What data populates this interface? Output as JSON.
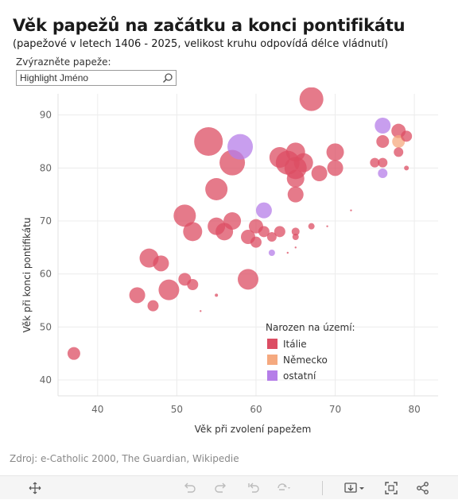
{
  "title": "Věk papežů na začátku a konci pontifikátu",
  "subtitle": "(papežové v letech 1406 - 2025, velikost kruhu odpovídá délce vládnutí)",
  "highlight": {
    "label": "Zvýrazněte papeže:",
    "placeholder": "Highlight Jméno",
    "icon": "search-icon"
  },
  "source": "Zdroj: e-Catholic 2000, The Guardian, Wikipedie",
  "toolbar": {
    "icons": [
      "move-icon",
      "undo-icon",
      "redo-icon",
      "revert-icon",
      "refresh-icon",
      "download-icon",
      "fullscreen-icon",
      "share-icon"
    ]
  },
  "colors": {
    "Itálie": "#dc4d63",
    "Německo": "#f5a97f",
    "ostatní": "#b57ee8",
    "grid": "#ececec",
    "axis": "#666666"
  },
  "chart_data": {
    "type": "scatter",
    "xlabel": "Věk při zvolení papežem",
    "ylabel": "Věk při konci pontifikátu",
    "xlim": [
      35,
      83
    ],
    "ylim": [
      37,
      94
    ],
    "xticks": [
      40,
      50,
      60,
      70,
      80
    ],
    "yticks": [
      40,
      50,
      60,
      70,
      80,
      90
    ],
    "grid": true,
    "legend": {
      "title": "Narozen na území:",
      "entries": [
        "Itálie",
        "Německo",
        "ostatní"
      ],
      "position": "bottom-right"
    },
    "points": [
      {
        "x": 37,
        "y": 45,
        "s": 8,
        "g": "Itálie"
      },
      {
        "x": 45,
        "y": 56,
        "s": 10,
        "g": "Itálie"
      },
      {
        "x": 46.5,
        "y": 63,
        "s": 12,
        "g": "Itálie"
      },
      {
        "x": 47,
        "y": 54,
        "s": 7,
        "g": "Itálie"
      },
      {
        "x": 48,
        "y": 62,
        "s": 10,
        "g": "Itálie"
      },
      {
        "x": 49,
        "y": 57,
        "s": 13,
        "g": "Itálie"
      },
      {
        "x": 51,
        "y": 59,
        "s": 8,
        "g": "Itálie"
      },
      {
        "x": 51,
        "y": 71,
        "s": 14,
        "g": "Itálie"
      },
      {
        "x": 52,
        "y": 68,
        "s": 12,
        "g": "Itálie"
      },
      {
        "x": 52,
        "y": 58,
        "s": 7,
        "g": "Itálie"
      },
      {
        "x": 53,
        "y": 53,
        "s": 1,
        "g": "Itálie"
      },
      {
        "x": 54,
        "y": 85,
        "s": 18,
        "g": "Itálie"
      },
      {
        "x": 55,
        "y": 76,
        "s": 14,
        "g": "Itálie"
      },
      {
        "x": 55,
        "y": 69,
        "s": 11,
        "g": "Itálie"
      },
      {
        "x": 55,
        "y": 56,
        "s": 2,
        "g": "Itálie"
      },
      {
        "x": 56,
        "y": 68,
        "s": 11,
        "g": "Itálie"
      },
      {
        "x": 57,
        "y": 81,
        "s": 16,
        "g": "Itálie"
      },
      {
        "x": 57,
        "y": 70,
        "s": 11,
        "g": "Itálie"
      },
      {
        "x": 58,
        "y": 84,
        "s": 16,
        "g": "ostatní"
      },
      {
        "x": 59,
        "y": 67,
        "s": 9,
        "g": "Itálie"
      },
      {
        "x": 59,
        "y": 59,
        "s": 13,
        "g": "Itálie"
      },
      {
        "x": 60,
        "y": 69,
        "s": 9,
        "g": "Itálie"
      },
      {
        "x": 60,
        "y": 66,
        "s": 7,
        "g": "Itálie"
      },
      {
        "x": 61,
        "y": 72,
        "s": 10,
        "g": "ostatní"
      },
      {
        "x": 61,
        "y": 68,
        "s": 7,
        "g": "Itálie"
      },
      {
        "x": 62,
        "y": 67,
        "s": 6,
        "g": "Itálie"
      },
      {
        "x": 62,
        "y": 64,
        "s": 4,
        "g": "ostatní"
      },
      {
        "x": 63,
        "y": 68,
        "s": 7,
        "g": "Itálie"
      },
      {
        "x": 63,
        "y": 82,
        "s": 13,
        "g": "Itálie"
      },
      {
        "x": 64,
        "y": 81,
        "s": 15,
        "g": "Itálie"
      },
      {
        "x": 64,
        "y": 64,
        "s": 1,
        "g": "Itálie"
      },
      {
        "x": 65,
        "y": 83,
        "s": 12,
        "g": "Itálie"
      },
      {
        "x": 65,
        "y": 80,
        "s": 14,
        "g": "Itálie"
      },
      {
        "x": 65,
        "y": 78,
        "s": 11,
        "g": "Itálie"
      },
      {
        "x": 65,
        "y": 75,
        "s": 10,
        "g": "Itálie"
      },
      {
        "x": 65,
        "y": 68,
        "s": 5,
        "g": "Itálie"
      },
      {
        "x": 65,
        "y": 67,
        "s": 4,
        "g": "Itálie"
      },
      {
        "x": 65,
        "y": 65,
        "s": 1,
        "g": "Itálie"
      },
      {
        "x": 66,
        "y": 81,
        "s": 12,
        "g": "Itálie"
      },
      {
        "x": 67,
        "y": 93,
        "s": 15,
        "g": "Itálie"
      },
      {
        "x": 67,
        "y": 69,
        "s": 4,
        "g": "Itálie"
      },
      {
        "x": 68,
        "y": 79,
        "s": 10,
        "g": "Itálie"
      },
      {
        "x": 69,
        "y": 69,
        "s": 1,
        "g": "Itálie"
      },
      {
        "x": 70,
        "y": 83,
        "s": 11,
        "g": "Itálie"
      },
      {
        "x": 70,
        "y": 80,
        "s": 10,
        "g": "Itálie"
      },
      {
        "x": 72,
        "y": 72,
        "s": 1,
        "g": "Itálie"
      },
      {
        "x": 75,
        "y": 81,
        "s": 6,
        "g": "Itálie"
      },
      {
        "x": 76,
        "y": 88,
        "s": 10,
        "g": "ostatní"
      },
      {
        "x": 76,
        "y": 85,
        "s": 8,
        "g": "Itálie"
      },
      {
        "x": 76,
        "y": 81,
        "s": 6,
        "g": "Itálie"
      },
      {
        "x": 76,
        "y": 79,
        "s": 6,
        "g": "ostatní"
      },
      {
        "x": 78,
        "y": 87,
        "s": 9,
        "g": "Itálie"
      },
      {
        "x": 78,
        "y": 85,
        "s": 8,
        "g": "Německo"
      },
      {
        "x": 78,
        "y": 83,
        "s": 6,
        "g": "Itálie"
      },
      {
        "x": 79,
        "y": 86,
        "s": 7,
        "g": "Itálie"
      },
      {
        "x": 79,
        "y": 80,
        "s": 3,
        "g": "Itálie"
      }
    ]
  }
}
